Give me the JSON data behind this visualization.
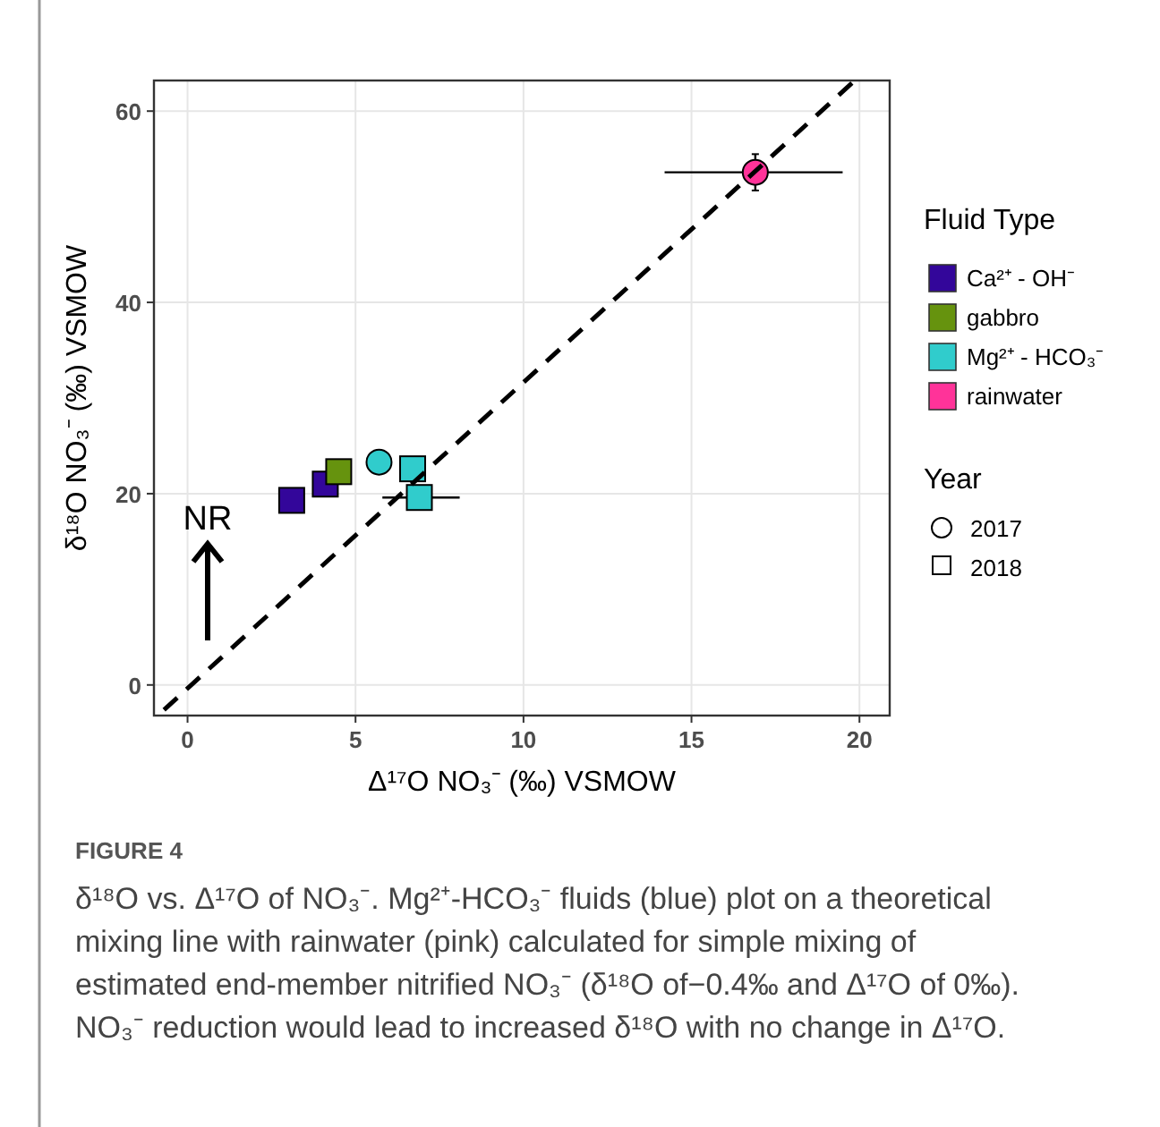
{
  "chart_data": {
    "type": "scatter",
    "xlabel": "Δ¹⁷O NO₃⁻ (‰) VSMOW",
    "ylabel": "δ¹⁸O NO₃⁻ (‰) VSMOW",
    "legend_title": "Fluid Type",
    "legend": "right",
    "xlim": [
      -1,
      20.9
    ],
    "ylim": [
      -3.2,
      63.2
    ],
    "xticks": [
      0,
      5,
      10,
      15,
      20
    ],
    "yticks": [
      0,
      20,
      40,
      60
    ],
    "grid": true,
    "series": [
      {
        "name": "Ca²⁺ - OH⁻",
        "color": "#33069a",
        "marker": "square",
        "x": [
          3.1,
          4.1
        ],
        "values": [
          19.3,
          21.0
        ]
      },
      {
        "name": "gabbro",
        "color": "#66930e",
        "marker": "square",
        "x": [
          4.5
        ],
        "values": [
          22.3
        ]
      },
      {
        "name": "Mg²⁺ - HCO₃⁻",
        "color": "#30cccc",
        "marker": "square",
        "x": [
          6.7,
          6.9
        ],
        "values": [
          22.6,
          19.6
        ],
        "xerrors": [
          null,
          [
            5.8,
            8.1
          ]
        ]
      },
      {
        "color": "#30cccc",
        "marker": "circle",
        "x": [
          5.7
        ],
        "values": [
          23.3
        ]
      },
      {
        "name": "rainwater",
        "color": "#ff3399",
        "marker": "circle",
        "x": [
          16.9
        ],
        "values": [
          53.6
        ],
        "xerrors": [
          [
            14.2,
            19.5
          ]
        ],
        "errors": [
          [
            51.7,
            55.5
          ]
        ]
      },
      {
        "type": "line",
        "color": "#000000",
        "line_style": "dashed",
        "marker": "none",
        "x": [
          -0.7,
          19.8
        ],
        "values": [
          -2.6,
          63.0
        ]
      }
    ],
    "annotations": [
      "NR",
      "Year",
      "2017",
      "2018",
      "FIGURE 4",
      "δ¹⁸O vs. Δ¹⁷O of NO₃⁻. Mg²⁺-HCO₃⁻ fluids (blue) plot on a theoretical mixing line with rainwater (pink) calculated for simple mixing of estimated end-member nitrified NO₃⁻ (δ¹⁸O of−0.4‰ and Δ¹⁷O of 0‰). NO₃⁻ reduction would lead to increased δ¹⁸O with no change in Δ¹⁷O."
    ]
  }
}
